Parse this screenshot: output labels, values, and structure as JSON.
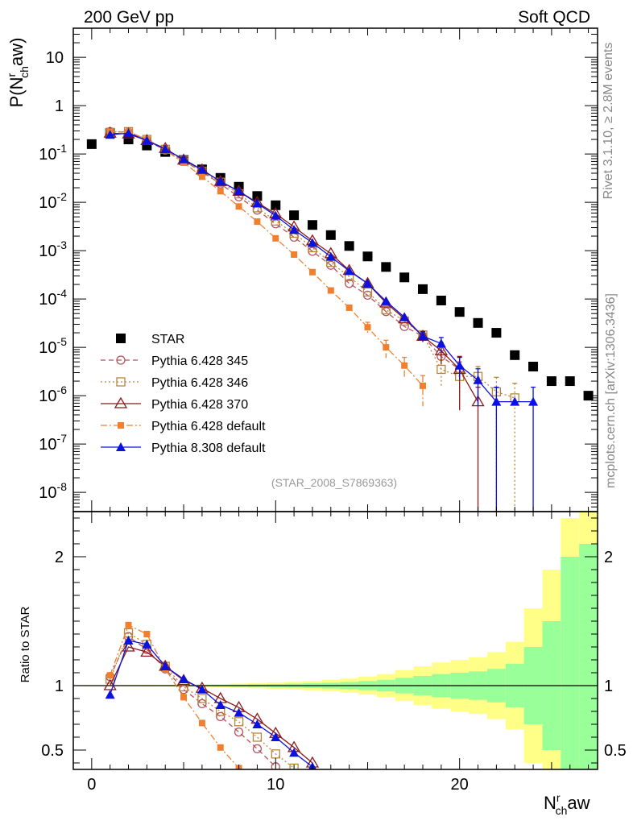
{
  "header": {
    "left": "200 GeV pp",
    "right": "Soft QCD"
  },
  "side": {
    "rivet": "Rivet 3.1.10, ≥ 2.8M events",
    "mcplots": "mcplots.cern.ch [arXiv:1306.3436]"
  },
  "chart_data": [
    {
      "type": "scatter",
      "panel": "main",
      "ylabel_main": "P(N",
      "ylabel_sub": "ch",
      "ylabel_sup": "r",
      "ylabel_tail": "aw)",
      "yscale": "log",
      "xlim": [
        -1,
        27.5
      ],
      "ylim": [
        4e-09,
        40
      ],
      "yticks": [
        "10^-8",
        "10^-7",
        "10^-6",
        "10^-5",
        "10^-4",
        "10^-3",
        "10^-2",
        "10^-1",
        "1",
        "10"
      ],
      "annotation": "(STAR_2008_S7869363)",
      "series": [
        {
          "name": "STAR",
          "color": "#000000",
          "marker": "square-filled",
          "line": "none",
          "x": [
            0,
            1,
            2,
            3,
            4,
            5,
            6,
            7,
            8,
            9,
            10,
            11,
            12,
            13,
            14,
            15,
            16,
            17,
            18,
            19,
            20,
            21,
            22,
            23,
            24,
            25,
            26,
            27
          ],
          "y": [
            0.16,
            0.27,
            0.2,
            0.15,
            0.11,
            0.075,
            0.048,
            0.032,
            0.021,
            0.0135,
            0.0087,
            0.0054,
            0.0034,
            0.0021,
            0.00125,
            0.00076,
            0.00046,
            0.00028,
            0.00016,
            9.3e-05,
            5.4e-05,
            3.2e-05,
            2e-05,
            6.9e-06,
            4e-06,
            2e-06,
            2e-06,
            1e-06
          ]
        },
        {
          "name": "Pythia 6.428 345",
          "color": "#b5525b",
          "marker": "circle-open",
          "line": "dashed",
          "x": [
            1,
            2,
            3,
            4,
            5,
            6,
            7,
            8,
            9,
            10,
            11,
            12,
            13,
            14,
            15,
            16,
            17,
            18,
            19,
            20
          ],
          "y": [
            0.29,
            0.28,
            0.19,
            0.12,
            0.072,
            0.043,
            0.024,
            0.013,
            0.0069,
            0.0036,
            0.0019,
            0.00097,
            0.0005,
            0.00021,
            0.00012,
            5.5e-05,
            2.7e-05,
            1.7e-05,
            6.5e-06,
            3.5e-06
          ],
          "yerr": [
            0,
            0,
            0,
            0,
            0,
            0,
            0,
            0,
            0,
            0,
            0,
            0,
            0,
            0,
            0,
            0,
            0,
            2e-06,
            2e-06,
            1.5e-06
          ]
        },
        {
          "name": "Pythia 6.428 346",
          "color": "#b8863b",
          "marker": "square-open",
          "line": "dotted",
          "x": [
            1,
            2,
            3,
            4,
            5,
            6,
            7,
            8,
            9,
            10,
            11,
            12,
            13,
            14,
            15,
            16,
            17,
            18,
            19,
            20,
            21,
            22,
            23
          ],
          "y": [
            0.28,
            0.29,
            0.2,
            0.125,
            0.074,
            0.044,
            0.026,
            0.015,
            0.0077,
            0.0041,
            0.0023,
            0.00115,
            0.00057,
            0.00029,
            0.00014,
            6e-05,
            3.5e-05,
            1.8e-05,
            3.5e-06,
            2.5e-06,
            2.5e-06,
            1.2e-06,
            9e-07
          ],
          "yerr": [
            0,
            0,
            0,
            0,
            0,
            0,
            0,
            0,
            0,
            0,
            0,
            0,
            0,
            0,
            0,
            0,
            0,
            4e-06,
            2e-06,
            1.5e-06,
            1.5e-06,
            1.2e-06,
            9e-07
          ]
        },
        {
          "name": "Pythia 6.428 370",
          "color": "#8b1a1a",
          "marker": "triangle-open",
          "line": "solid",
          "x": [
            1,
            2,
            3,
            4,
            5,
            6,
            7,
            8,
            9,
            10,
            11,
            12,
            13,
            14,
            15,
            16,
            17,
            18,
            19,
            20,
            21
          ],
          "y": [
            0.27,
            0.26,
            0.19,
            0.13,
            0.075,
            0.047,
            0.027,
            0.017,
            0.0099,
            0.0058,
            0.0031,
            0.0016,
            0.00087,
            0.00039,
            0.00021,
            8.3e-05,
            3.9e-05,
            1.7e-05,
            8.5e-06,
            3.5e-06,
            7.5e-07
          ],
          "yerr": [
            0,
            0,
            0,
            0,
            0,
            0,
            0,
            0,
            0,
            0,
            0,
            0,
            0,
            0,
            0,
            0,
            0,
            4e-06,
            4e-06,
            3e-06,
            7.5e-07
          ]
        },
        {
          "name": "Pythia 6.428 default",
          "color": "#f08030",
          "marker": "square-filled-small",
          "line": "dashdot",
          "x": [
            1,
            2,
            3,
            4,
            5,
            6,
            7,
            8,
            9,
            10,
            11,
            12,
            13,
            14,
            15,
            16,
            17,
            18
          ],
          "y": [
            0.29,
            0.29,
            0.2,
            0.12,
            0.066,
            0.034,
            0.017,
            0.0082,
            0.004,
            0.0018,
            0.00083,
            0.00036,
            0.00015,
            6.6e-05,
            2.6e-05,
            1e-05,
            4.2e-06,
            1.6e-06
          ],
          "yerr": [
            0,
            0,
            0,
            0,
            0,
            0,
            0,
            0,
            0,
            0,
            0,
            0,
            0,
            0,
            7e-06,
            4e-06,
            2e-06,
            1e-06
          ]
        },
        {
          "name": "Pythia 8.308 default",
          "color": "#0a12e0",
          "marker": "triangle-filled",
          "line": "solid",
          "x": [
            1,
            2,
            3,
            4,
            5,
            6,
            7,
            8,
            9,
            10,
            11,
            12,
            13,
            14,
            15,
            16,
            17,
            18,
            19,
            20,
            21,
            22,
            23,
            24
          ],
          "y": [
            0.25,
            0.27,
            0.19,
            0.125,
            0.078,
            0.047,
            0.027,
            0.017,
            0.0095,
            0.0053,
            0.0027,
            0.00145,
            0.00075,
            0.00038,
            0.00021,
            9e-05,
            4.2e-05,
            1.7e-05,
            1.2e-05,
            4.2e-06,
            2.1e-06,
            7.5e-07,
            7.5e-07,
            7.5e-07
          ],
          "yerr": [
            0,
            0,
            0,
            0,
            0,
            0,
            0,
            0,
            0,
            0,
            0,
            0,
            0,
            0,
            0,
            0,
            0,
            4e-06,
            4e-06,
            2e-06,
            1.5e-06,
            7.5e-07,
            0,
            7.5e-07
          ]
        }
      ]
    },
    {
      "type": "line",
      "panel": "ratio",
      "ylabel": "Ratio to STAR",
      "xlabel_main": "N",
      "xlabel_sub": "ch",
      "xlabel_sup": "r",
      "xlabel_tail": "aw",
      "xlim": [
        -1,
        27.5
      ],
      "ylim": [
        0.35,
        2.35
      ],
      "xticks": [
        0,
        10,
        20
      ],
      "yticks": [
        0.5,
        1,
        2
      ],
      "bands": {
        "x": [
          0,
          1,
          2,
          3,
          4,
          5,
          6,
          7,
          8,
          9,
          10,
          11,
          12,
          13,
          14,
          15,
          16,
          17,
          18,
          19,
          20,
          21,
          22,
          23,
          24,
          25,
          26,
          27
        ],
        "green": [
          0.002,
          0.002,
          0.002,
          0.003,
          0.003,
          0.004,
          0.005,
          0.006,
          0.008,
          0.01,
          0.012,
          0.015,
          0.018,
          0.022,
          0.028,
          0.035,
          0.045,
          0.06,
          0.075,
          0.09,
          0.1,
          0.11,
          0.13,
          0.17,
          0.3,
          0.5,
          1.0,
          1.1
        ],
        "yellow": [
          0.004,
          0.004,
          0.005,
          0.006,
          0.006,
          0.008,
          0.01,
          0.012,
          0.016,
          0.02,
          0.025,
          0.03,
          0.036,
          0.045,
          0.055,
          0.07,
          0.09,
          0.12,
          0.15,
          0.18,
          0.2,
          0.22,
          0.26,
          0.34,
          0.6,
          0.9,
          1.3,
          1.5
        ]
      },
      "series": [
        {
          "name": "Pythia 6.428 345",
          "x": [
            1,
            2,
            3,
            4,
            5,
            6,
            7,
            8,
            9,
            10
          ],
          "y": [
            1.07,
            1.38,
            1.28,
            1.13,
            0.97,
            0.86,
            0.76,
            0.64,
            0.51,
            0.37
          ]
        },
        {
          "name": "Pythia 6.428 346",
          "x": [
            1,
            2,
            3,
            4,
            5,
            6,
            7,
            8,
            9,
            10,
            11
          ],
          "y": [
            1.05,
            1.41,
            1.32,
            1.15,
            0.99,
            0.9,
            0.8,
            0.72,
            0.6,
            0.47,
            0.36
          ]
        },
        {
          "name": "Pythia 6.428 370",
          "x": [
            1,
            2,
            3,
            4,
            5,
            6,
            7,
            8,
            9,
            10,
            11,
            12
          ],
          "y": [
            1.0,
            1.3,
            1.26,
            1.15,
            1.04,
            0.98,
            0.9,
            0.83,
            0.74,
            0.63,
            0.52,
            0.4
          ]
        },
        {
          "name": "Pythia 6.428 default",
          "x": [
            1,
            2,
            3,
            4,
            5,
            6,
            7,
            8
          ],
          "y": [
            1.08,
            1.47,
            1.4,
            1.13,
            0.91,
            0.71,
            0.52,
            0.36
          ]
        },
        {
          "name": "Pythia 8.308 default",
          "x": [
            1,
            2,
            3,
            4,
            5,
            6,
            7,
            8,
            9,
            10,
            11,
            12
          ],
          "y": [
            0.93,
            1.35,
            1.32,
            1.15,
            1.05,
            0.97,
            0.85,
            0.79,
            0.7,
            0.6,
            0.48,
            0.37
          ]
        }
      ]
    }
  ]
}
